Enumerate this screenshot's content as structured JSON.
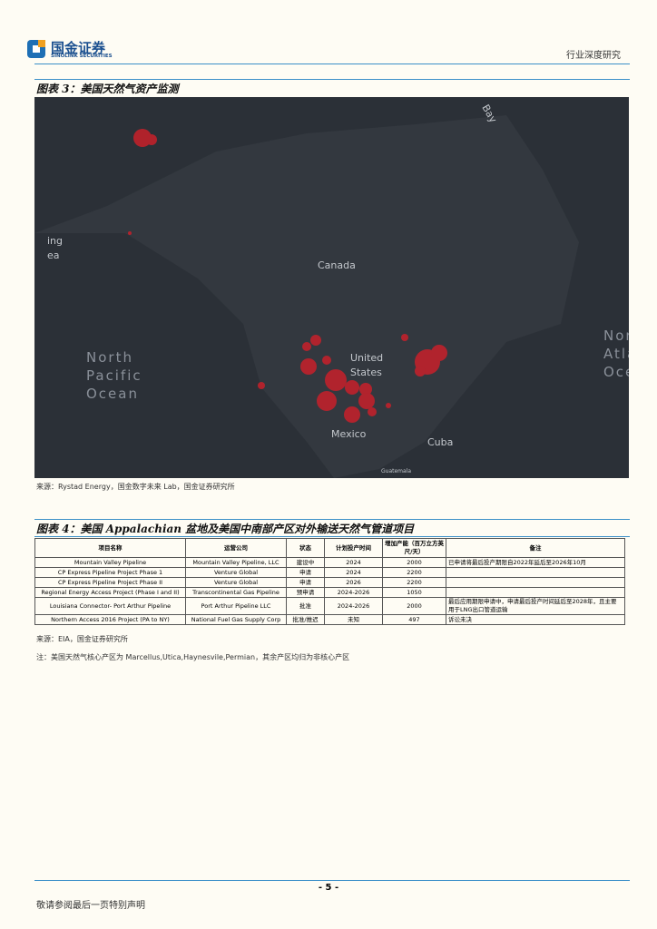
{
  "header": {
    "logo_cn": "国金证券",
    "logo_en": "SINOLINK SECURITIES",
    "category": "行业深度研究"
  },
  "figure3": {
    "title": "图表 3：美国天然气资产监测",
    "source": "来源：Rystad Energy，国金数字未来 Lab，国金证券研究所",
    "map_labels": [
      {
        "lines": [
          "Canada"
        ]
      },
      {
        "lines": [
          "United",
          "States"
        ]
      },
      {
        "lines": [
          "Mexico"
        ]
      },
      {
        "lines": [
          "Cuba"
        ]
      },
      {
        "lines": [
          "Guatemala"
        ]
      },
      {
        "lines": [
          "North",
          "Pacific",
          "Ocean"
        ]
      },
      {
        "lines": [
          "North",
          "Atlantic",
          "Ocean"
        ]
      },
      {
        "lines": [
          "Bay"
        ]
      },
      {
        "lines": [
          "ing",
          "ea"
        ]
      }
    ]
  },
  "figure4": {
    "title": "图表 4：美国 Appalachian 盆地及美国中南部产区对外输送天然气管道项目",
    "table": {
      "header": [
        "项目名称",
        "运营公司",
        "状态",
        "计划投产时间",
        "增加产能（百万立方英尺/天）",
        "备注"
      ],
      "rows": [
        [
          "Mountain Valley Pipeline",
          "Mountain Valley Pipeline, LLC",
          "建设中",
          2024,
          2000,
          "已申请将最后投产期限自2022年延后至2026年10月"
        ],
        [
          "CP Express Pipeline Project Phase 1",
          "Venture Global",
          "申请",
          2024,
          2200
        ],
        [
          "CP Express Pipeline Project Phase II",
          "Venture Global",
          "申请",
          2026,
          2200
        ],
        [
          "Regional Energy Access Project (Phase I and II)",
          "Transcontinental Gas Pipeline",
          "预申请",
          "2024-2026",
          1050
        ],
        [
          "Louisiana Connector- Port Arthur Pipeline",
          "Port Arthur Pipeline LLC",
          "批准",
          "2024-2026",
          2000,
          "最后应用期限申请中，申请最后投产时间延后至2028年，且主要用于LNG出口管道运输"
        ],
        [
          "Northern Access 2016 Project (PA to NY)",
          "National Fuel Gas Supply Corp",
          "批准/推迟",
          "未知",
          497,
          "诉讼未决"
        ]
      ]
    },
    "source": "来源：EIA，国金证券研究所",
    "note": "注：美国天然气核心产区为 Marcellus,Utica,Haynesvile,Permian，其余产区均归为非核心产区"
  },
  "footer": {
    "page": "- 5 -",
    "disclaimer": "敬请参阅最后一页特别声明"
  }
}
